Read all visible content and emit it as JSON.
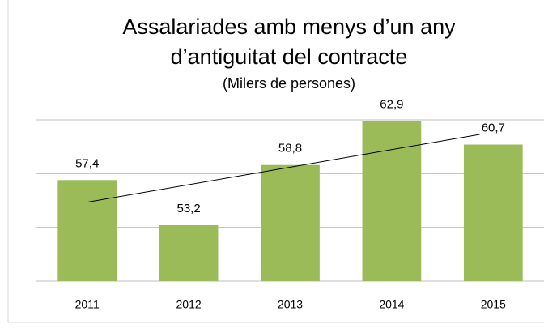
{
  "chart_data": {
    "type": "bar",
    "title": [
      "Assalariades amb menys d’un any",
      "d’antiguitat del contracte"
    ],
    "subtitle": "(Milers de persones)",
    "categories": [
      "2011",
      "2012",
      "2013",
      "2014",
      "2015"
    ],
    "values": [
      57.4,
      53.2,
      58.8,
      62.9,
      60.7
    ],
    "value_labels": [
      "57,4",
      "53,2",
      "58,8",
      "62,9",
      "60,7"
    ],
    "color": "#9bbb59",
    "ylim": [
      48,
      63
    ],
    "yticks": [
      48,
      53,
      58,
      63
    ],
    "grid": true,
    "trendline": "linear"
  }
}
